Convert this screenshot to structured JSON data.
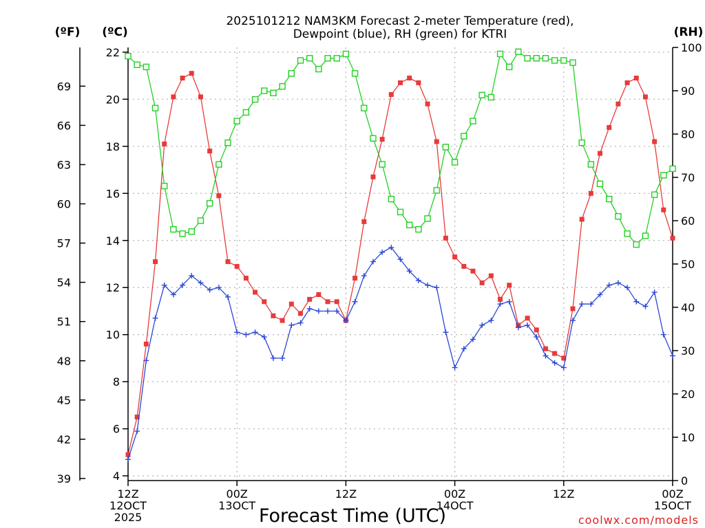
{
  "chart_data": {
    "type": "line",
    "title_lines": [
      "2025101212 NAM3KM Forecast 2-meter Temperature (red),",
      "Dewpoint (blue), RH (green) for KTRI"
    ],
    "xlabel": "Forecast Time (UTC)",
    "credit": "coolwx.com/models",
    "units": {
      "fahrenheit": "(ºF)",
      "celsius": "(ºC)",
      "rh": "(RH)"
    },
    "x_ticks": [
      {
        "hour": 0,
        "lines": [
          "12Z",
          "12OCT",
          "2025"
        ]
      },
      {
        "hour": 12,
        "lines": [
          "00Z",
          "13OCT"
        ]
      },
      {
        "hour": 24,
        "lines": [
          "12Z"
        ]
      },
      {
        "hour": 36,
        "lines": [
          "00Z",
          "14OCT"
        ]
      },
      {
        "hour": 48,
        "lines": [
          "12Z"
        ]
      },
      {
        "hour": 60,
        "lines": [
          "00Z",
          "15OCT"
        ]
      }
    ],
    "xlim": [
      0,
      60
    ],
    "celsius_axis": {
      "ylim": [
        3.8,
        22.2
      ],
      "ticks": [
        "4",
        "6",
        "8",
        "10",
        "12",
        "14",
        "16",
        "18",
        "20",
        "22"
      ]
    },
    "fahrenheit_axis": {
      "ticks": [
        "39",
        "42",
        "45",
        "48",
        "51",
        "54",
        "57",
        "60",
        "63",
        "66",
        "69"
      ]
    },
    "rh_axis": {
      "ylim": [
        0,
        100
      ],
      "ticks": [
        "0",
        "10",
        "20",
        "30",
        "40",
        "50",
        "60",
        "70",
        "80",
        "90",
        "100"
      ]
    },
    "colors": {
      "temperature": "#e83a3a",
      "dewpoint": "#2a47d6",
      "rh": "#22d022",
      "grid": "#b0b0b0"
    },
    "series": [
      {
        "name": "Temperature",
        "axis": "celsius",
        "marker": "filled-square",
        "hours": [
          0,
          1,
          2,
          3,
          4,
          5,
          6,
          7,
          8,
          9,
          10,
          11,
          12,
          13,
          14,
          15,
          16,
          17,
          18,
          19,
          20,
          21,
          22,
          23,
          24,
          25,
          26,
          27,
          28,
          29,
          30,
          31,
          32,
          33,
          34,
          35,
          36,
          37,
          38,
          39,
          40,
          41,
          42,
          43,
          44,
          45,
          46,
          47,
          48,
          49,
          50,
          51,
          52,
          53,
          54,
          55,
          56,
          57,
          58,
          59,
          60
        ],
        "values": [
          4.9,
          6.5,
          9.6,
          13.1,
          18.1,
          20.1,
          20.9,
          21.1,
          20.1,
          17.8,
          15.9,
          13.1,
          12.9,
          12.4,
          11.8,
          11.4,
          10.8,
          10.6,
          11.3,
          10.9,
          11.5,
          11.7,
          11.4,
          11.4,
          10.6,
          12.4,
          14.8,
          16.7,
          18.3,
          20.2,
          20.7,
          20.9,
          20.7,
          19.8,
          18.2,
          14.1,
          13.3,
          12.9,
          12.7,
          12.2,
          12.5,
          11.5,
          12.1,
          10.4,
          10.7,
          10.2,
          9.4,
          9.2,
          9.0,
          11.1,
          14.9,
          16.0,
          17.7,
          18.8,
          19.8,
          20.7,
          20.9,
          20.1,
          18.2,
          15.3,
          14.1
        ]
      },
      {
        "name": "Dewpoint",
        "axis": "celsius",
        "marker": "plus",
        "hours": [
          0,
          1,
          2,
          3,
          4,
          5,
          6,
          7,
          8,
          9,
          10,
          11,
          12,
          13,
          14,
          15,
          16,
          17,
          18,
          19,
          20,
          21,
          22,
          23,
          24,
          25,
          26,
          27,
          28,
          29,
          30,
          31,
          32,
          33,
          34,
          35,
          36,
          37,
          38,
          39,
          40,
          41,
          42,
          43,
          44,
          45,
          46,
          47,
          48,
          49,
          50,
          51,
          52,
          53,
          54,
          55,
          56,
          57,
          58,
          59,
          60
        ],
        "values": [
          4.7,
          5.9,
          8.9,
          10.7,
          12.1,
          11.7,
          12.1,
          12.5,
          12.2,
          11.9,
          12.0,
          11.6,
          10.1,
          10.0,
          10.1,
          9.9,
          9.0,
          9.0,
          10.4,
          10.5,
          11.1,
          11.0,
          11.0,
          11.0,
          10.6,
          11.4,
          12.5,
          13.1,
          13.5,
          13.7,
          13.2,
          12.7,
          12.3,
          12.1,
          12.0,
          10.1,
          8.6,
          9.4,
          9.8,
          10.4,
          10.6,
          11.3,
          11.4,
          10.3,
          10.4,
          9.9,
          9.1,
          8.8,
          8.6,
          10.6,
          11.3,
          11.3,
          11.7,
          12.1,
          12.2,
          12.0,
          11.4,
          11.2,
          11.8,
          10.0,
          9.1
        ]
      },
      {
        "name": "RH",
        "axis": "rh",
        "marker": "open-square",
        "hours": [
          0,
          1,
          2,
          3,
          4,
          5,
          6,
          7,
          8,
          9,
          10,
          11,
          12,
          13,
          14,
          15,
          16,
          17,
          18,
          19,
          20,
          21,
          22,
          23,
          24,
          25,
          26,
          27,
          28,
          29,
          30,
          31,
          32,
          33,
          34,
          35,
          36,
          37,
          38,
          39,
          40,
          41,
          42,
          43,
          44,
          45,
          46,
          47,
          48,
          49,
          50,
          51,
          52,
          53,
          54,
          55,
          56,
          57,
          58,
          59,
          60
        ],
        "values": [
          98,
          96,
          95.5,
          86,
          68,
          58,
          57,
          57.5,
          60,
          64,
          73,
          78,
          83,
          85,
          88,
          90,
          89.5,
          91,
          94,
          97,
          97.5,
          95,
          97.5,
          97.5,
          98.5,
          94,
          86,
          79,
          73,
          65,
          62,
          59,
          58,
          60.5,
          67,
          77,
          73.5,
          79.5,
          83,
          89,
          88.5,
          98.5,
          95.5,
          99,
          97.5,
          97.5,
          97.5,
          97,
          97,
          96.5,
          78,
          73,
          68.5,
          65,
          61,
          57,
          54.5,
          56.5,
          66,
          70.5,
          72
        ]
      }
    ]
  }
}
